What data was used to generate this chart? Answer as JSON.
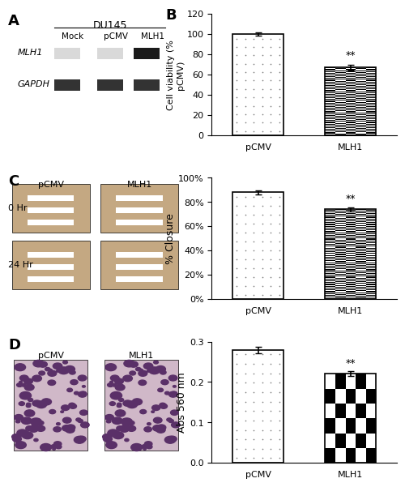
{
  "panel_B": {
    "categories": [
      "pCMV",
      "MLH1"
    ],
    "values": [
      100,
      67
    ],
    "errors": [
      1.5,
      2.5
    ],
    "ylabel": "Cell viability (%\npCMV)",
    "ylim": [
      0,
      120
    ],
    "yticks": [
      0,
      20,
      40,
      60,
      80,
      100,
      120
    ],
    "significance": "**",
    "sig_on": 1,
    "title": "B"
  },
  "panel_C": {
    "categories": [
      "pCMV",
      "MLH1"
    ],
    "values": [
      88,
      74
    ],
    "errors": [
      1.5,
      1.5
    ],
    "ylabel": "% Closure",
    "ylim": [
      0,
      100
    ],
    "ytick_labels": [
      "0%",
      "20%",
      "40%",
      "60%",
      "80%",
      "100%"
    ],
    "significance": "**",
    "sig_on": 1,
    "title": "C"
  },
  "panel_D": {
    "categories": [
      "pCMV",
      "MLH1"
    ],
    "values": [
      0.28,
      0.22
    ],
    "errors": [
      0.008,
      0.006
    ],
    "ylabel": "Abs 560 nm",
    "ylim": [
      0,
      0.3
    ],
    "yticks": [
      0,
      0.1,
      0.2,
      0.3
    ],
    "significance": "**",
    "sig_on": 1,
    "title": "D"
  },
  "colors": {
    "dotted": "#ffffff",
    "checker": "#000000",
    "bar_edge": "#000000",
    "background": "#ffffff"
  }
}
